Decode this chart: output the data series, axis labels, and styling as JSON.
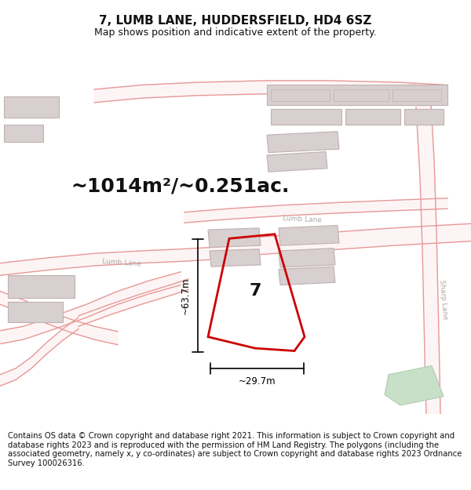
{
  "title": "7, LUMB LANE, HUDDERSFIELD, HD4 6SZ",
  "subtitle": "Map shows position and indicative extent of the property.",
  "area_text": "~1014m²/~0.251ac.",
  "property_number": "7",
  "dim_width": "~29.7m",
  "dim_height": "~63.7m",
  "footer": "Contains OS data © Crown copyright and database right 2021. This information is subject to Crown copyright and database rights 2023 and is reproduced with the permission of HM Land Registry. The polygons (including the associated geometry, namely x, y co-ordinates) are subject to Crown copyright and database rights 2023 Ordnance Survey 100026316.",
  "bg_color": "#ffffff",
  "road_color": "#e89898",
  "road_fill": "#fdf5f5",
  "bld_fill": "#e8d8d8",
  "bld_edge": "#d8b8b8",
  "grey_fill": "#d8d0d0",
  "grey_edge": "#c0b0b0",
  "green_fill": "#c8dfc8",
  "green_edge": "#b0ccb0",
  "prop_color": "#cc0000",
  "title_fontsize": 11,
  "subtitle_fontsize": 9,
  "area_fontsize": 18,
  "number_fontsize": 16,
  "footer_fontsize": 7.2,
  "road_label_color": "#b0a8a8",
  "road_lw": 1.0,
  "prop_lw": 2.0
}
